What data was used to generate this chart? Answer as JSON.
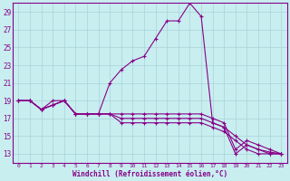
{
  "xlabel": "Windchill (Refroidissement éolien,°C)",
  "xlim_min": -0.5,
  "xlim_max": 23.5,
  "ylim_min": 12,
  "ylim_max": 30,
  "xticks": [
    0,
    1,
    2,
    3,
    4,
    5,
    6,
    7,
    8,
    9,
    10,
    11,
    12,
    13,
    14,
    15,
    16,
    17,
    18,
    19,
    20,
    21,
    22,
    23
  ],
  "yticks": [
    13,
    15,
    17,
    19,
    21,
    23,
    25,
    27,
    29
  ],
  "bg_color": "#c8eef0",
  "line_color": "#880088",
  "grid_color": "#a8d4d8",
  "curves": [
    [
      19.0,
      19.0,
      18.0,
      19.0,
      19.0,
      17.5,
      17.5,
      17.5,
      21.0,
      22.5,
      23.5,
      24.0,
      26.0,
      28.0,
      28.0,
      30.0,
      28.5,
      16.5,
      16.0,
      13.0,
      14.0,
      13.5,
      13.0,
      13.0
    ],
    [
      19.0,
      19.0,
      18.0,
      18.5,
      19.0,
      17.5,
      17.5,
      17.5,
      17.5,
      17.5,
      17.5,
      17.5,
      17.5,
      17.5,
      17.5,
      17.5,
      17.5,
      17.0,
      16.5,
      13.5,
      14.5,
      14.0,
      13.5,
      13.0
    ],
    [
      19.0,
      19.0,
      18.0,
      18.5,
      19.0,
      17.5,
      17.5,
      17.5,
      17.5,
      17.0,
      17.0,
      17.0,
      17.0,
      17.0,
      17.0,
      17.0,
      17.0,
      16.5,
      16.0,
      15.0,
      14.0,
      13.5,
      13.2,
      13.0
    ],
    [
      19.0,
      19.0,
      18.0,
      18.5,
      19.0,
      17.5,
      17.5,
      17.5,
      17.5,
      16.5,
      16.5,
      16.5,
      16.5,
      16.5,
      16.5,
      16.5,
      16.5,
      16.0,
      15.5,
      14.5,
      13.5,
      13.0,
      13.0,
      13.0
    ]
  ]
}
